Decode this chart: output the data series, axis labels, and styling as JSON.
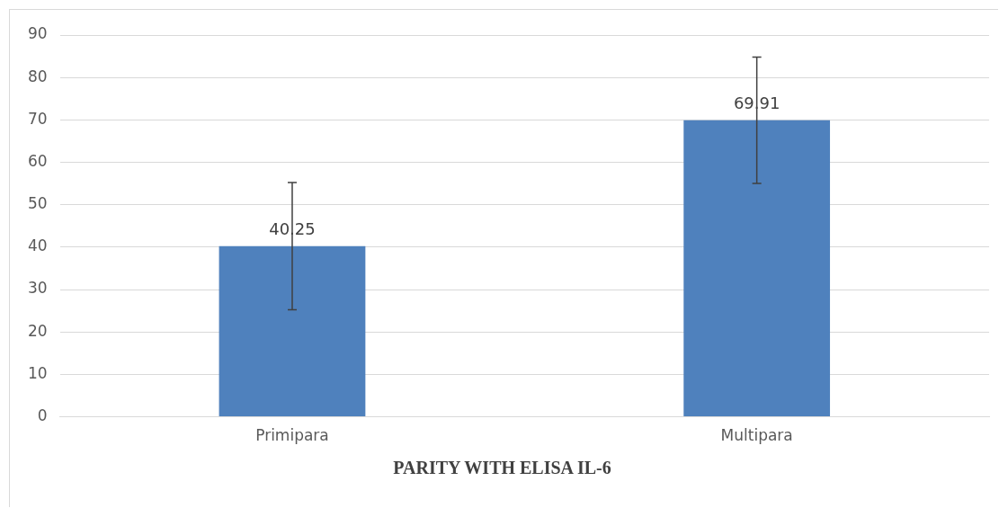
{
  "chart_data": {
    "type": "bar",
    "title": "PARITY WITH ELISA IL-6",
    "categories": [
      "Primipara",
      "Multipara"
    ],
    "values": [
      40.25,
      69.91
    ],
    "errors": [
      15,
      14.9
    ],
    "color": "#4f81bd",
    "ylim": [
      0,
      90
    ],
    "yticks": [
      0,
      10,
      20,
      30,
      40,
      50,
      60,
      70,
      80,
      90
    ],
    "grid": "y",
    "data_labels": true
  }
}
